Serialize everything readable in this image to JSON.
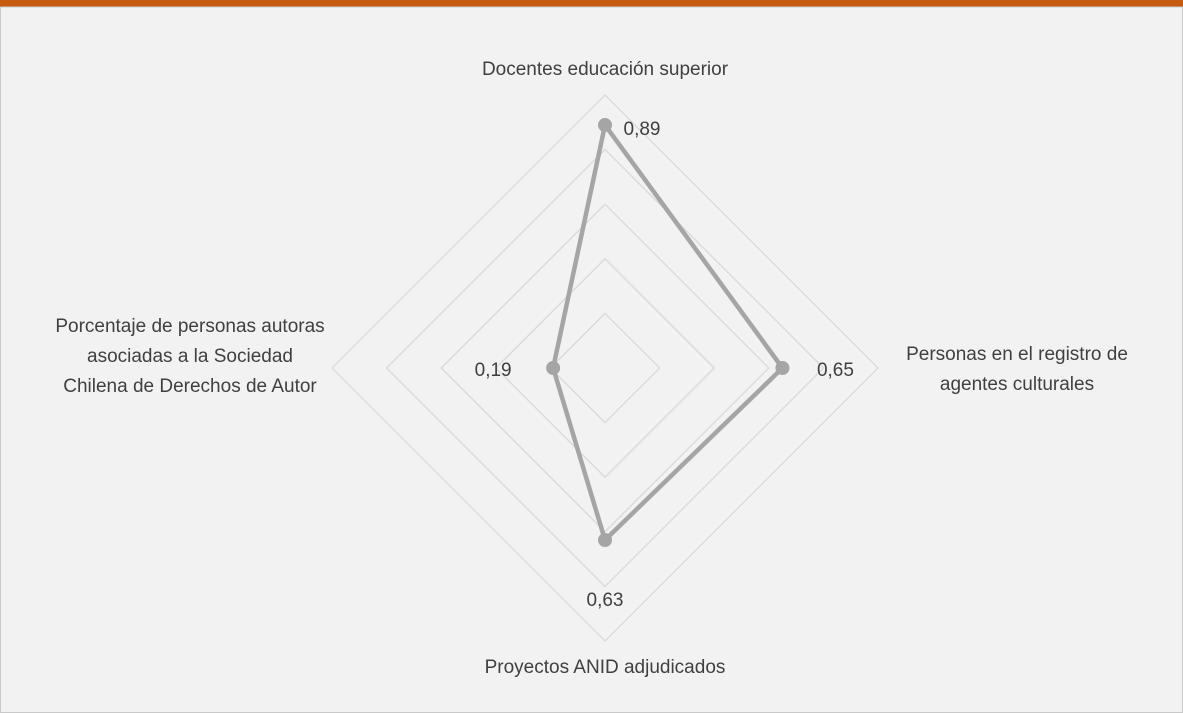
{
  "chart_data": {
    "type": "radar",
    "categories": [
      "Docentes educación superior",
      "Personas en el registro de agentes culturales",
      "Proyectos ANID adjudicados",
      "Porcentaje de personas autoras asociadas a la Sociedad Chilena de Derechos de Autor"
    ],
    "values": [
      0.89,
      0.65,
      0.63,
      0.19
    ],
    "value_labels": [
      "0,89",
      "0,65",
      "0,63",
      "0,19"
    ],
    "color": "#a5a5a5",
    "rlim": [
      0,
      1
    ],
    "rticks": [
      0.2,
      0.4,
      0.6,
      0.8,
      1.0
    ],
    "grid": true
  }
}
